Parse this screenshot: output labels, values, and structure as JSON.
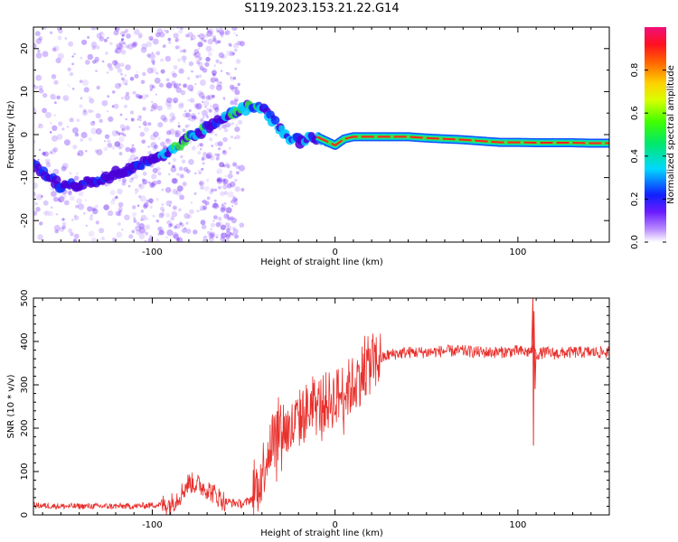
{
  "title": "S119.2023.153.21.22.G14",
  "colors": {
    "trace": "#e8302c",
    "track_dark": "#4a00cc",
    "scatter": "#8a4bff",
    "ridge": "#ff2020"
  },
  "chart_data": [
    {
      "type": "heatmap",
      "xlabel": "Height of straight line (km)",
      "ylabel": "Frequency (Hz)",
      "xlim": [
        -165,
        150
      ],
      "ylim": [
        -25,
        25
      ],
      "xticks": [
        -100,
        0,
        100
      ],
      "yticks": [
        -20,
        -10,
        0,
        10,
        20
      ],
      "colorbar": {
        "label": "Normalized spectral amplitude",
        "range": [
          0,
          1
        ],
        "ticks": [
          0.0,
          0.2,
          0.4,
          0.6,
          0.8
        ]
      },
      "track": {
        "x": [
          -165,
          -150,
          -140,
          -130,
          -120,
          -110,
          -100,
          -90,
          -80,
          -70,
          -60,
          -50,
          -45,
          -40,
          -35,
          -30,
          -25,
          -20,
          -15,
          -10,
          -5,
          0,
          5,
          10,
          20,
          30,
          40,
          50,
          60,
          70,
          80,
          90,
          100,
          110,
          120,
          130,
          140,
          150
        ],
        "y": [
          -7,
          -12,
          -11.5,
          -10.5,
          -9,
          -7.5,
          -6,
          -4,
          -1,
          1.5,
          4,
          6,
          7,
          6.5,
          4,
          1,
          -0.5,
          -1.5,
          -1,
          -0.5,
          -1.5,
          -2.5,
          -1,
          -0.5,
          -0.5,
          -0.5,
          -0.5,
          -0.8,
          -1,
          -1.2,
          -1.5,
          -1.8,
          -1.8,
          -1.9,
          -1.9,
          -1.9,
          -2,
          -2
        ]
      }
    },
    {
      "type": "line",
      "xlabel": "Height of straight line (km)",
      "ylabel": "SNR (10 * v/v)",
      "xlim": [
        -165,
        150
      ],
      "ylim": [
        0,
        500
      ],
      "xticks": [
        -100,
        0,
        100
      ],
      "yticks": [
        0,
        100,
        200,
        300,
        400,
        500
      ],
      "series": [
        {
          "name": "SNR",
          "x": [
            -165,
            -150,
            -130,
            -110,
            -90,
            -85,
            -80,
            -75,
            -70,
            -65,
            -60,
            -50,
            -45,
            -40,
            -35,
            -30,
            -25,
            -20,
            -15,
            -10,
            -5,
            0,
            5,
            10,
            15,
            20,
            25,
            30,
            40,
            50,
            60,
            70,
            80,
            90,
            100,
            105,
            108,
            110,
            115,
            120,
            130,
            140,
            150
          ],
          "y": [
            22,
            20,
            20,
            20,
            25,
            45,
            75,
            70,
            60,
            45,
            30,
            25,
            40,
            100,
            170,
            210,
            190,
            220,
            240,
            250,
            260,
            270,
            285,
            300,
            330,
            350,
            360,
            370,
            375,
            375,
            378,
            378,
            375,
            375,
            378,
            375,
            380,
            370,
            375,
            372,
            375,
            375,
            375
          ]
        }
      ],
      "spike": {
        "x": 108.5,
        "y_max": 500,
        "y_min": 160
      }
    }
  ]
}
